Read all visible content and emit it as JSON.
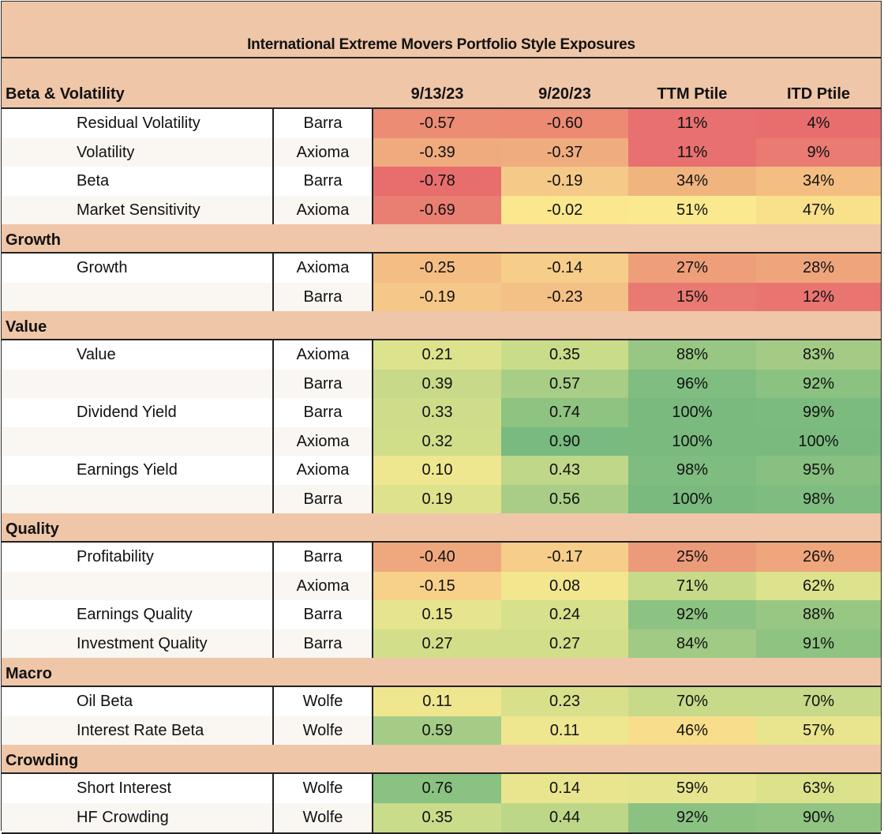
{
  "title": "International Extreme Movers Portfolio Style Exposures",
  "columns": {
    "first": "Beta & Volatility",
    "d1": "9/13/23",
    "d2": "9/20/23",
    "ttm": "TTM Ptile",
    "itd": "ITD Ptile"
  },
  "sections": [
    {
      "name": "Beta & Volatility",
      "rows": [
        {
          "factor": "Residual Volatility",
          "source": "Barra",
          "d1": "-0.57",
          "d2": "-0.60",
          "ttm": "11%",
          "itd": "4%",
          "colors": [
            "#ec8c74",
            "#ec8a73",
            "#e87070",
            "#e86e6e"
          ]
        },
        {
          "factor": "Volatility",
          "source": "Axioma",
          "d1": "-0.39",
          "d2": "-0.37",
          "ttm": "11%",
          "itd": "9%",
          "colors": [
            "#efab7e",
            "#efad7f",
            "#e87070",
            "#e97b73"
          ]
        },
        {
          "factor": "Beta",
          "source": "Barra",
          "d1": "-0.78",
          "d2": "-0.19",
          "ttm": "34%",
          "itd": "34%",
          "colors": [
            "#e86e6e",
            "#f5c988",
            "#f0b47f",
            "#f4be83"
          ]
        },
        {
          "factor": "Market Sensitivity",
          "source": "Axioma",
          "d1": "-0.69",
          "d2": "-0.02",
          "ttm": "51%",
          "itd": "47%",
          "colors": [
            "#e97f72",
            "#fbe78d",
            "#fbe98f",
            "#f9e08b"
          ]
        }
      ]
    },
    {
      "name": "Growth",
      "rows": [
        {
          "factor": "Growth",
          "source": "Axioma",
          "d1": "-0.25",
          "d2": "-0.14",
          "ttm": "27%",
          "itd": "28%",
          "colors": [
            "#f3bd84",
            "#f6cd89",
            "#ee9f7a",
            "#efa57c"
          ]
        },
        {
          "factor": "",
          "source": "Barra",
          "d1": "-0.19",
          "d2": "-0.23",
          "ttm": "15%",
          "itd": "12%",
          "colors": [
            "#f5c788",
            "#f3c085",
            "#e97a72",
            "#e87570"
          ]
        }
      ]
    },
    {
      "name": "Value",
      "rows": [
        {
          "factor": "Value",
          "source": "Axioma",
          "d1": "0.21",
          "d2": "0.35",
          "ttm": "88%",
          "itd": "83%",
          "colors": [
            "#dde28c",
            "#c9dc89",
            "#98c783",
            "#a4cb85"
          ]
        },
        {
          "factor": "",
          "source": "Barra",
          "d1": "0.39",
          "d2": "0.57",
          "ttm": "96%",
          "itd": "92%",
          "colors": [
            "#c8da89",
            "#a8cd86",
            "#7fbd80",
            "#8bc282"
          ]
        },
        {
          "factor": "Dividend Yield",
          "source": "Barra",
          "d1": "0.33",
          "d2": "0.74",
          "ttm": "100%",
          "itd": "99%",
          "colors": [
            "#cfdd8a",
            "#8fc382",
            "#7aba7f",
            "#7cbb7f"
          ]
        },
        {
          "factor": "",
          "source": "Axioma",
          "d1": "0.32",
          "d2": "0.90",
          "ttm": "100%",
          "itd": "100%",
          "colors": [
            "#d0de8a",
            "#78ba7f",
            "#7aba7f",
            "#7aba7f"
          ]
        },
        {
          "factor": "Earnings Yield",
          "source": "Axioma",
          "d1": "0.10",
          "d2": "0.43",
          "ttm": "98%",
          "itd": "95%",
          "colors": [
            "#efe690",
            "#bfd788",
            "#7fbc80",
            "#87c081"
          ]
        },
        {
          "factor": "",
          "source": "Barra",
          "d1": "0.19",
          "d2": "0.56",
          "ttm": "100%",
          "itd": "98%",
          "colors": [
            "#dfe28c",
            "#a9cd86",
            "#7aba7f",
            "#7fbc80"
          ]
        }
      ]
    },
    {
      "name": "Quality",
      "rows": [
        {
          "factor": "Profitability",
          "source": "Barra",
          "d1": "-0.40",
          "d2": "-0.17",
          "ttm": "25%",
          "itd": "26%",
          "colors": [
            "#efa87d",
            "#f6cd89",
            "#ec9b7a",
            "#efa67c"
          ]
        },
        {
          "factor": "",
          "source": "Axioma",
          "d1": "-0.15",
          "d2": "0.08",
          "ttm": "71%",
          "itd": "62%",
          "colors": [
            "#f7d18a",
            "#f2e68f",
            "#c6da89",
            "#dde28c"
          ]
        },
        {
          "factor": "Earnings Quality",
          "source": "Barra",
          "d1": "0.15",
          "d2": "0.24",
          "ttm": "92%",
          "itd": "88%",
          "colors": [
            "#e6e48e",
            "#d7e08b",
            "#8dc382",
            "#98c783"
          ]
        },
        {
          "factor": "Investment Quality",
          "source": "Barra",
          "d1": "0.27",
          "d2": "0.27",
          "ttm": "84%",
          "itd": "91%",
          "colors": [
            "#d3de8a",
            "#d3de8a",
            "#a1ca85",
            "#8fc382"
          ]
        }
      ]
    },
    {
      "name": "Macro",
      "rows": [
        {
          "factor": "Oil Beta",
          "source": "Wolfe",
          "d1": "0.11",
          "d2": "0.23",
          "ttm": "70%",
          "itd": "70%",
          "colors": [
            "#efe690",
            "#d9e08b",
            "#c7da89",
            "#c7da89"
          ]
        },
        {
          "factor": "Interest Rate Beta",
          "source": "Wolfe",
          "d1": "0.59",
          "d2": "0.11",
          "ttm": "46%",
          "itd": "57%",
          "colors": [
            "#a5cc86",
            "#efe690",
            "#f8de8b",
            "#e9e58e"
          ]
        }
      ]
    },
    {
      "name": "Crowding",
      "rows": [
        {
          "factor": "Short Interest",
          "source": "Wolfe",
          "d1": "0.76",
          "d2": "0.14",
          "ttm": "59%",
          "itd": "63%",
          "colors": [
            "#8ac282",
            "#e8e58e",
            "#e6e48e",
            "#dce18c"
          ]
        },
        {
          "factor": "HF Crowding",
          "source": "Wolfe",
          "d1": "0.35",
          "d2": "0.44",
          "ttm": "92%",
          "itd": "90%",
          "colors": [
            "#c9dc89",
            "#bdd788",
            "#8bc282",
            "#91c482"
          ]
        }
      ]
    }
  ]
}
